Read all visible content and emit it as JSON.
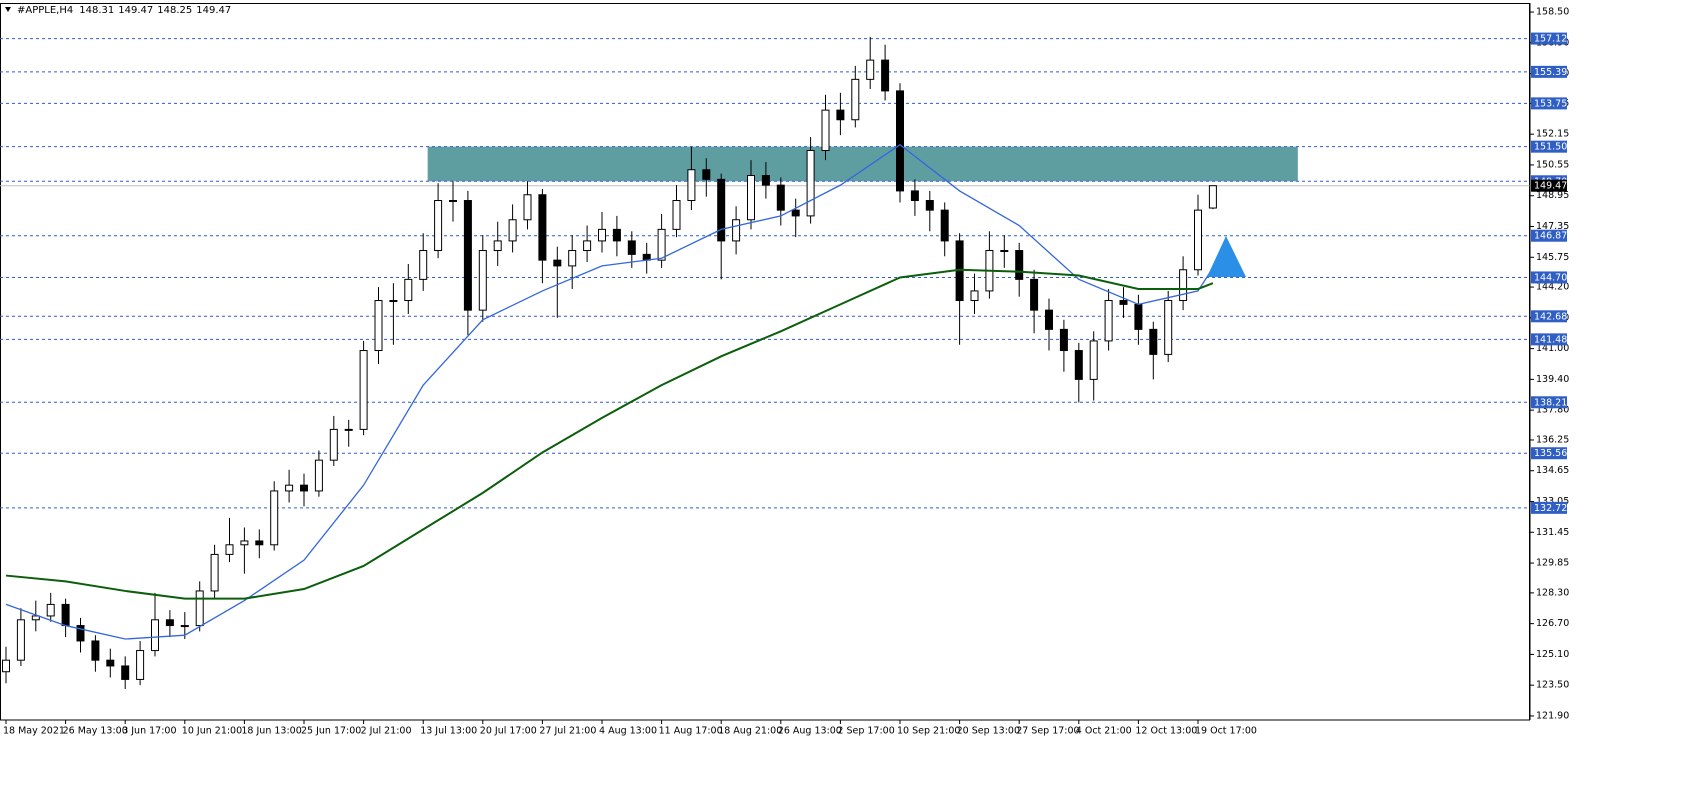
{
  "chart_data": {
    "type": "candlestick",
    "title": "#APPLE,H4",
    "categories": [
      "18 May 2021",
      null,
      null,
      null,
      "26 May 13:00",
      null,
      null,
      null,
      "3 Jun 17:00",
      null,
      null,
      null,
      "10 Jun 21:00",
      null,
      null,
      null,
      "18 Jun 13:00",
      null,
      null,
      null,
      "25 Jun 17:00",
      null,
      null,
      null,
      "2 Jul 21:00",
      null,
      null,
      null,
      "13 Jul 13:00",
      null,
      null,
      null,
      "20 Jul 17:00",
      null,
      null,
      null,
      "27 Jul 21:00",
      null,
      null,
      null,
      "4 Aug 13:00",
      null,
      null,
      null,
      "11 Aug 17:00",
      null,
      null,
      null,
      "18 Aug 21:00",
      null,
      null,
      null,
      "26 Aug 13:00",
      null,
      null,
      null,
      "2 Sep 17:00",
      null,
      null,
      null,
      "10 Sep 21:00",
      null,
      null,
      null,
      "20 Sep 13:00",
      null,
      null,
      null,
      "27 Sep 17:00",
      null,
      null,
      null,
      "4 Oct 21:00",
      null,
      null,
      null,
      "12 Oct 13:00",
      null,
      null,
      null,
      "19 Oct 17:00",
      null
    ],
    "open": [
      124.2,
      124.8,
      126.9,
      127.1,
      127.7,
      126.6,
      125.8,
      124.8,
      124.5,
      123.8,
      125.3,
      126.9,
      126.6,
      126.6,
      128.4,
      130.3,
      130.8,
      131.0,
      130.8,
      133.6,
      133.9,
      133.6,
      135.2,
      136.8,
      136.8,
      140.9,
      143.5,
      143.5,
      144.6,
      146.1,
      148.7,
      148.7,
      143.0,
      146.1,
      146.6,
      147.7,
      149.0,
      145.6,
      145.3,
      146.1,
      146.6,
      147.2,
      146.6,
      145.9,
      145.6,
      147.2,
      148.7,
      150.3,
      149.8,
      146.6,
      147.7,
      150.0,
      149.5,
      148.2,
      147.9,
      151.3,
      153.4,
      152.9,
      155.0,
      156.0,
      154.4,
      149.2,
      148.7,
      148.2,
      146.6,
      143.5,
      144.0,
      146.1,
      146.1,
      144.6,
      143.0,
      142.0,
      140.9,
      139.4,
      141.4,
      143.5,
      143.3,
      142.0,
      140.7,
      143.5,
      145.1,
      148.31
    ],
    "high": [
      125.5,
      127.5,
      127.9,
      128.3,
      128.0,
      127.0,
      126.1,
      125.4,
      125.0,
      125.8,
      128.3,
      127.4,
      127.3,
      128.9,
      130.8,
      132.2,
      131.7,
      131.6,
      134.1,
      134.7,
      134.5,
      135.7,
      137.5,
      137.3,
      141.4,
      144.2,
      144.4,
      145.4,
      147.0,
      149.6,
      149.7,
      149.2,
      146.9,
      147.6,
      148.5,
      149.7,
      149.3,
      146.3,
      146.9,
      147.4,
      148.1,
      147.9,
      147.1,
      146.5,
      148.0,
      149.5,
      151.5,
      150.9,
      150.1,
      148.4,
      150.8,
      150.7,
      149.9,
      148.8,
      152.0,
      154.2,
      154.3,
      155.7,
      157.2,
      156.8,
      154.8,
      149.8,
      149.2,
      148.6,
      147.0,
      144.9,
      147.1,
      146.9,
      146.5,
      145.1,
      143.6,
      142.5,
      141.3,
      141.9,
      144.1,
      144.2,
      143.8,
      142.4,
      144.0,
      145.8,
      149.0,
      149.47
    ],
    "low": [
      123.6,
      124.5,
      126.3,
      126.8,
      126.0,
      125.2,
      124.2,
      123.9,
      123.3,
      123.5,
      125.0,
      126.0,
      125.9,
      126.3,
      128.0,
      129.9,
      129.3,
      130.1,
      130.5,
      133.0,
      132.8,
      133.3,
      134.9,
      135.9,
      136.5,
      140.2,
      141.2,
      142.8,
      144.0,
      145.7,
      147.6,
      141.7,
      142.4,
      145.3,
      146.0,
      147.2,
      144.4,
      142.6,
      144.1,
      145.5,
      146.0,
      145.8,
      145.2,
      144.9,
      145.2,
      146.8,
      148.2,
      148.9,
      144.6,
      145.9,
      147.2,
      148.8,
      147.4,
      146.8,
      147.5,
      150.8,
      152.1,
      152.5,
      154.5,
      153.9,
      148.6,
      147.9,
      147.1,
      145.8,
      141.2,
      142.8,
      143.6,
      145.2,
      143.7,
      141.8,
      140.9,
      139.8,
      138.2,
      138.3,
      140.9,
      142.6,
      141.2,
      139.4,
      140.3,
      143.0,
      144.8,
      148.25
    ],
    "close": [
      124.8,
      126.9,
      127.1,
      127.7,
      126.6,
      125.8,
      124.8,
      124.5,
      123.8,
      125.3,
      126.9,
      126.6,
      126.6,
      128.4,
      130.3,
      130.8,
      131.0,
      130.8,
      133.6,
      133.9,
      133.6,
      135.2,
      136.8,
      136.8,
      140.9,
      143.5,
      143.5,
      144.6,
      146.1,
      148.7,
      148.7,
      143.0,
      146.1,
      146.6,
      147.7,
      149.0,
      145.6,
      145.3,
      146.1,
      146.6,
      147.2,
      146.6,
      145.9,
      145.6,
      147.2,
      148.7,
      150.3,
      149.8,
      146.6,
      147.7,
      150.0,
      149.5,
      148.2,
      147.9,
      151.3,
      153.4,
      152.9,
      155.0,
      156.0,
      154.4,
      149.2,
      148.7,
      148.2,
      146.6,
      143.5,
      144.0,
      146.1,
      146.1,
      144.6,
      143.0,
      142.0,
      140.9,
      139.4,
      141.4,
      143.5,
      143.3,
      142.0,
      140.7,
      143.5,
      145.1,
      148.2,
      149.47
    ],
    "up_color": "#ffffff",
    "down_color": "#000000",
    "edge_color": "#000000",
    "ylim": [
      121.69,
      158.97
    ],
    "yticks": [
      {
        "value": 158.5,
        "label": "158.50"
      },
      {
        "value": 156.9,
        "label": "156.90"
      },
      {
        "value": 155.3,
        "label": "155.30"
      },
      153.75,
      152.15,
      150.55,
      148.95,
      147.35,
      145.75,
      {
        "value": 144.2,
        "label": "144.20"
      },
      {
        "value": 142.6,
        "label": "142.60"
      },
      {
        "value": 141.0,
        "label": "141.00"
      },
      {
        "value": 139.4,
        "label": "139.40"
      },
      {
        "value": 137.8,
        "label": "137.80"
      },
      136.25,
      134.65,
      133.05,
      131.45,
      129.85,
      {
        "value": 128.3,
        "label": "128.30"
      },
      {
        "value": 126.7,
        "label": "126.70"
      },
      {
        "value": 125.1,
        "label": "125.10"
      },
      {
        "value": 123.5,
        "label": "123.50"
      },
      {
        "value": 121.9,
        "label": "121.90"
      }
    ],
    "levels": {
      "values": [
        157.12,
        155.39,
        153.75,
        151.5,
        149.7,
        146.87,
        144.7,
        142.68,
        141.48,
        138.21,
        135.56,
        132.72
      ],
      "value_labels": [
        "157.12",
        "155.39",
        "153.75",
        "151.50",
        "149.70",
        "146.87",
        "144.70",
        "142.68",
        "141.48",
        "138.21",
        "135.56",
        "132.72"
      ],
      "color": "#2f5fc4"
    },
    "last_price_color": "#c0c0c0",
    "zone": {
      "xlim": [
        28.3,
        86.7
      ],
      "ylim": [
        149.7,
        151.5
      ],
      "color": "#5f9ea0"
    },
    "ma": [
      {
        "color": "#3366dd",
        "x": [
          0,
          4,
          8,
          12,
          16,
          20,
          24,
          28,
          32,
          36,
          40,
          44,
          48,
          52,
          56,
          60,
          64,
          68,
          72,
          76,
          80,
          81
        ],
        "values": [
          127.7,
          126.6,
          125.9,
          126.1,
          127.9,
          130.0,
          133.9,
          139.1,
          142.5,
          144.0,
          145.3,
          145.7,
          147.2,
          147.9,
          149.5,
          151.6,
          149.2,
          147.4,
          144.6,
          143.3,
          144.0,
          145.2
        ]
      },
      {
        "color": "#0b5e0b",
        "x": [
          0,
          4,
          8,
          12,
          16,
          20,
          24,
          28,
          32,
          36,
          40,
          44,
          48,
          52,
          56,
          60,
          64,
          68,
          72,
          76,
          80,
          81
        ],
        "values": [
          129.2,
          128.9,
          128.4,
          128.0,
          128.0,
          128.5,
          129.7,
          131.6,
          133.5,
          135.6,
          137.4,
          139.1,
          140.6,
          141.9,
          143.3,
          144.7,
          145.1,
          145.0,
          144.8,
          144.1,
          144.1,
          144.4
        ]
      }
    ]
  }
}
